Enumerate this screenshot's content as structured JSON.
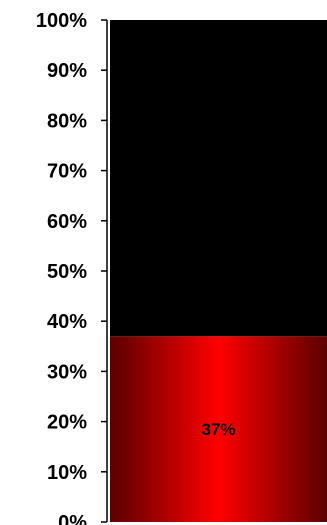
{
  "chart_data": {
    "type": "bar",
    "stacked": true,
    "orientation": "vertical",
    "ylim": [
      0,
      100
    ],
    "y_ticks": [
      "0%",
      "10%",
      "20%",
      "30%",
      "40%",
      "50%",
      "60%",
      "70%",
      "80%",
      "90%",
      "100%"
    ],
    "y_tick_values": [
      0,
      10,
      20,
      30,
      40,
      50,
      60,
      70,
      80,
      90,
      100
    ],
    "grid": false,
    "legend": "none",
    "series": [
      {
        "values": [
          37
        ],
        "color": "#ff0000",
        "data_label": "37%"
      },
      {
        "values": [
          63
        ],
        "color": "#000000"
      }
    ]
  }
}
